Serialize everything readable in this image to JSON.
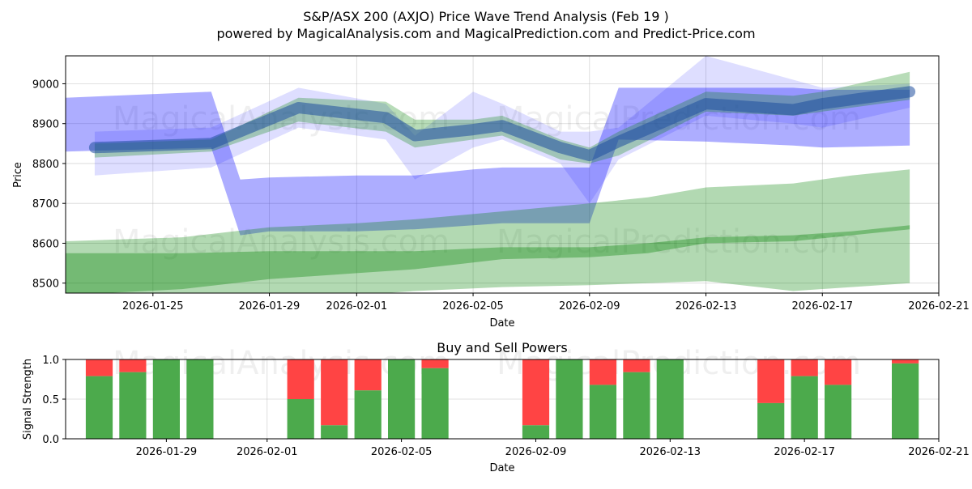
{
  "title": "S&P/ASX 200 (AXJO) Price Wave Trend Analysis (Feb 19 )",
  "subtitle": "powered by MagicalAnalysis.com and MagicalPrediction.com and Predict-Price.com",
  "watermarks": [
    "MagicalAnalysis.com",
    "MagicalPrediction.com"
  ],
  "chart_data": [
    {
      "type": "area",
      "title": "",
      "xlabel": "Date",
      "ylabel": "Price",
      "xlim": [
        "2026-01-22",
        "2026-02-21"
      ],
      "ylim": [
        8475,
        9070
      ],
      "grid": true,
      "x_ticks": [
        "2026-01-25",
        "2026-01-29",
        "2026-02-01",
        "2026-02-05",
        "2026-02-09",
        "2026-02-13",
        "2026-02-17",
        "2026-02-21"
      ],
      "y_ticks": [
        8500,
        8600,
        8700,
        8800,
        8900,
        9000
      ],
      "colors": {
        "blue": "#0000ff",
        "green": "#008000",
        "dark_blue": "#1f4f9f"
      },
      "series": [
        {
          "name": "short-term blue wave",
          "color": "#0000ff",
          "x": [
            "2026-01-23",
            "2026-01-27",
            "2026-01-30",
            "2026-02-02",
            "2026-02-03",
            "2026-02-05",
            "2026-02-06",
            "2026-02-08",
            "2026-02-09",
            "2026-02-10",
            "2026-02-13",
            "2026-02-16",
            "2026-02-17",
            "2026-02-20"
          ],
          "lower": [
            8770,
            8790,
            8890,
            8860,
            8760,
            8840,
            8860,
            8800,
            8700,
            8810,
            8920,
            8900,
            8890,
            8940
          ],
          "upper": [
            8880,
            8890,
            8990,
            8950,
            8870,
            8980,
            8950,
            8880,
            8880,
            8890,
            9070,
            9010,
            8990,
            9000
          ]
        },
        {
          "name": "long-term blue wave",
          "color": "#0000ff",
          "x": [
            "2026-01-22",
            "2026-01-27",
            "2026-01-28",
            "2026-01-29",
            "2026-02-01",
            "2026-02-03",
            "2026-02-05",
            "2026-02-06",
            "2026-02-08",
            "2026-02-09",
            "2026-02-10",
            "2026-02-13",
            "2026-02-16",
            "2026-02-17",
            "2026-02-20"
          ],
          "lower": [
            8830,
            8840,
            8620,
            8630,
            8630,
            8635,
            8645,
            8650,
            8650,
            8650,
            8860,
            8855,
            8845,
            8840,
            8845
          ],
          "upper": [
            8965,
            8980,
            8760,
            8765,
            8770,
            8770,
            8785,
            8790,
            8790,
            8790,
            8990,
            8990,
            8990,
            8985,
            8985
          ]
        },
        {
          "name": "short-term green wave",
          "color": "#008000",
          "x": [
            "2026-01-23",
            "2026-01-27",
            "2026-01-30",
            "2026-02-02",
            "2026-02-03",
            "2026-02-05",
            "2026-02-06",
            "2026-02-08",
            "2026-02-09",
            "2026-02-10",
            "2026-02-13",
            "2026-02-16",
            "2026-02-17",
            "2026-02-20"
          ],
          "lower": [
            8815,
            8830,
            8905,
            8880,
            8840,
            8860,
            8870,
            8810,
            8800,
            8820,
            8930,
            8920,
            8930,
            8960
          ],
          "upper": [
            8850,
            8860,
            8965,
            8955,
            8910,
            8910,
            8920,
            8860,
            8840,
            8880,
            8980,
            8970,
            8980,
            9030
          ]
        },
        {
          "name": "long-term green wave",
          "color": "#008000",
          "x": [
            "2026-01-22",
            "2026-01-26",
            "2026-01-29",
            "2026-02-01",
            "2026-02-03",
            "2026-02-06",
            "2026-02-09",
            "2026-02-11",
            "2026-02-13",
            "2026-02-16",
            "2026-02-18",
            "2026-02-20"
          ],
          "lower": [
            8425,
            8435,
            8460,
            8470,
            8480,
            8490,
            8495,
            8500,
            8505,
            8480,
            8490,
            8500
          ],
          "upper": [
            8605,
            8615,
            8640,
            8650,
            8660,
            8680,
            8700,
            8715,
            8740,
            8750,
            8770,
            8785
          ]
        },
        {
          "name": "mid-term green wave",
          "color": "#008000",
          "x": [
            "2026-01-22",
            "2026-01-26",
            "2026-01-29",
            "2026-02-01",
            "2026-02-03",
            "2026-02-06",
            "2026-02-09",
            "2026-02-11",
            "2026-02-13",
            "2026-02-16",
            "2026-02-18",
            "2026-02-20"
          ],
          "lower": [
            8470,
            8485,
            8510,
            8525,
            8535,
            8560,
            8565,
            8575,
            8600,
            8605,
            8620,
            8635
          ],
          "upper": [
            8575,
            8575,
            8580,
            8580,
            8580,
            8590,
            8590,
            8600,
            8615,
            8620,
            8630,
            8645
          ]
        },
        {
          "name": "price trend",
          "color": "#1f4f9f",
          "x": [
            "2026-01-23",
            "2026-01-27",
            "2026-01-30",
            "2026-02-02",
            "2026-02-03",
            "2026-02-05",
            "2026-02-06",
            "2026-02-08",
            "2026-02-09",
            "2026-02-10",
            "2026-02-13",
            "2026-02-16",
            "2026-02-17",
            "2026-02-20"
          ],
          "values": [
            8840,
            8850,
            8940,
            8915,
            8870,
            8885,
            8895,
            8840,
            8820,
            8855,
            8950,
            8935,
            8950,
            8980
          ]
        }
      ]
    },
    {
      "type": "bar",
      "title": "Buy and Sell Powers",
      "xlabel": "Date",
      "ylabel": "Signal Strength",
      "xlim": [
        "2026-01-26",
        "2026-02-21"
      ],
      "ylim": [
        0,
        1
      ],
      "grid": true,
      "x_ticks": [
        "2026-01-29",
        "2026-02-01",
        "2026-02-05",
        "2026-02-09",
        "2026-02-13",
        "2026-02-17",
        "2026-02-21"
      ],
      "y_ticks": [
        0.0,
        0.5,
        1.0
      ],
      "colors": {
        "buy": "#4caa4c",
        "sell": "#ff4444"
      },
      "bars": [
        {
          "date": "2026-01-27",
          "buy": 0.79
        },
        {
          "date": "2026-01-28",
          "buy": 0.84
        },
        {
          "date": "2026-01-29",
          "buy": 1.0
        },
        {
          "date": "2026-01-30",
          "buy": 1.0
        },
        {
          "date": "2026-02-02",
          "buy": 0.5
        },
        {
          "date": "2026-02-03",
          "buy": 0.17
        },
        {
          "date": "2026-02-04",
          "buy": 0.61
        },
        {
          "date": "2026-02-05",
          "buy": 1.0
        },
        {
          "date": "2026-02-06",
          "buy": 0.89
        },
        {
          "date": "2026-02-09",
          "buy": 0.17
        },
        {
          "date": "2026-02-10",
          "buy": 1.0
        },
        {
          "date": "2026-02-11",
          "buy": 0.68
        },
        {
          "date": "2026-02-12",
          "buy": 0.84
        },
        {
          "date": "2026-02-13",
          "buy": 1.0
        },
        {
          "date": "2026-02-16",
          "buy": 0.45
        },
        {
          "date": "2026-02-17",
          "buy": 0.79
        },
        {
          "date": "2026-02-18",
          "buy": 0.68
        },
        {
          "date": "2026-02-20",
          "buy": 0.95
        }
      ]
    }
  ]
}
